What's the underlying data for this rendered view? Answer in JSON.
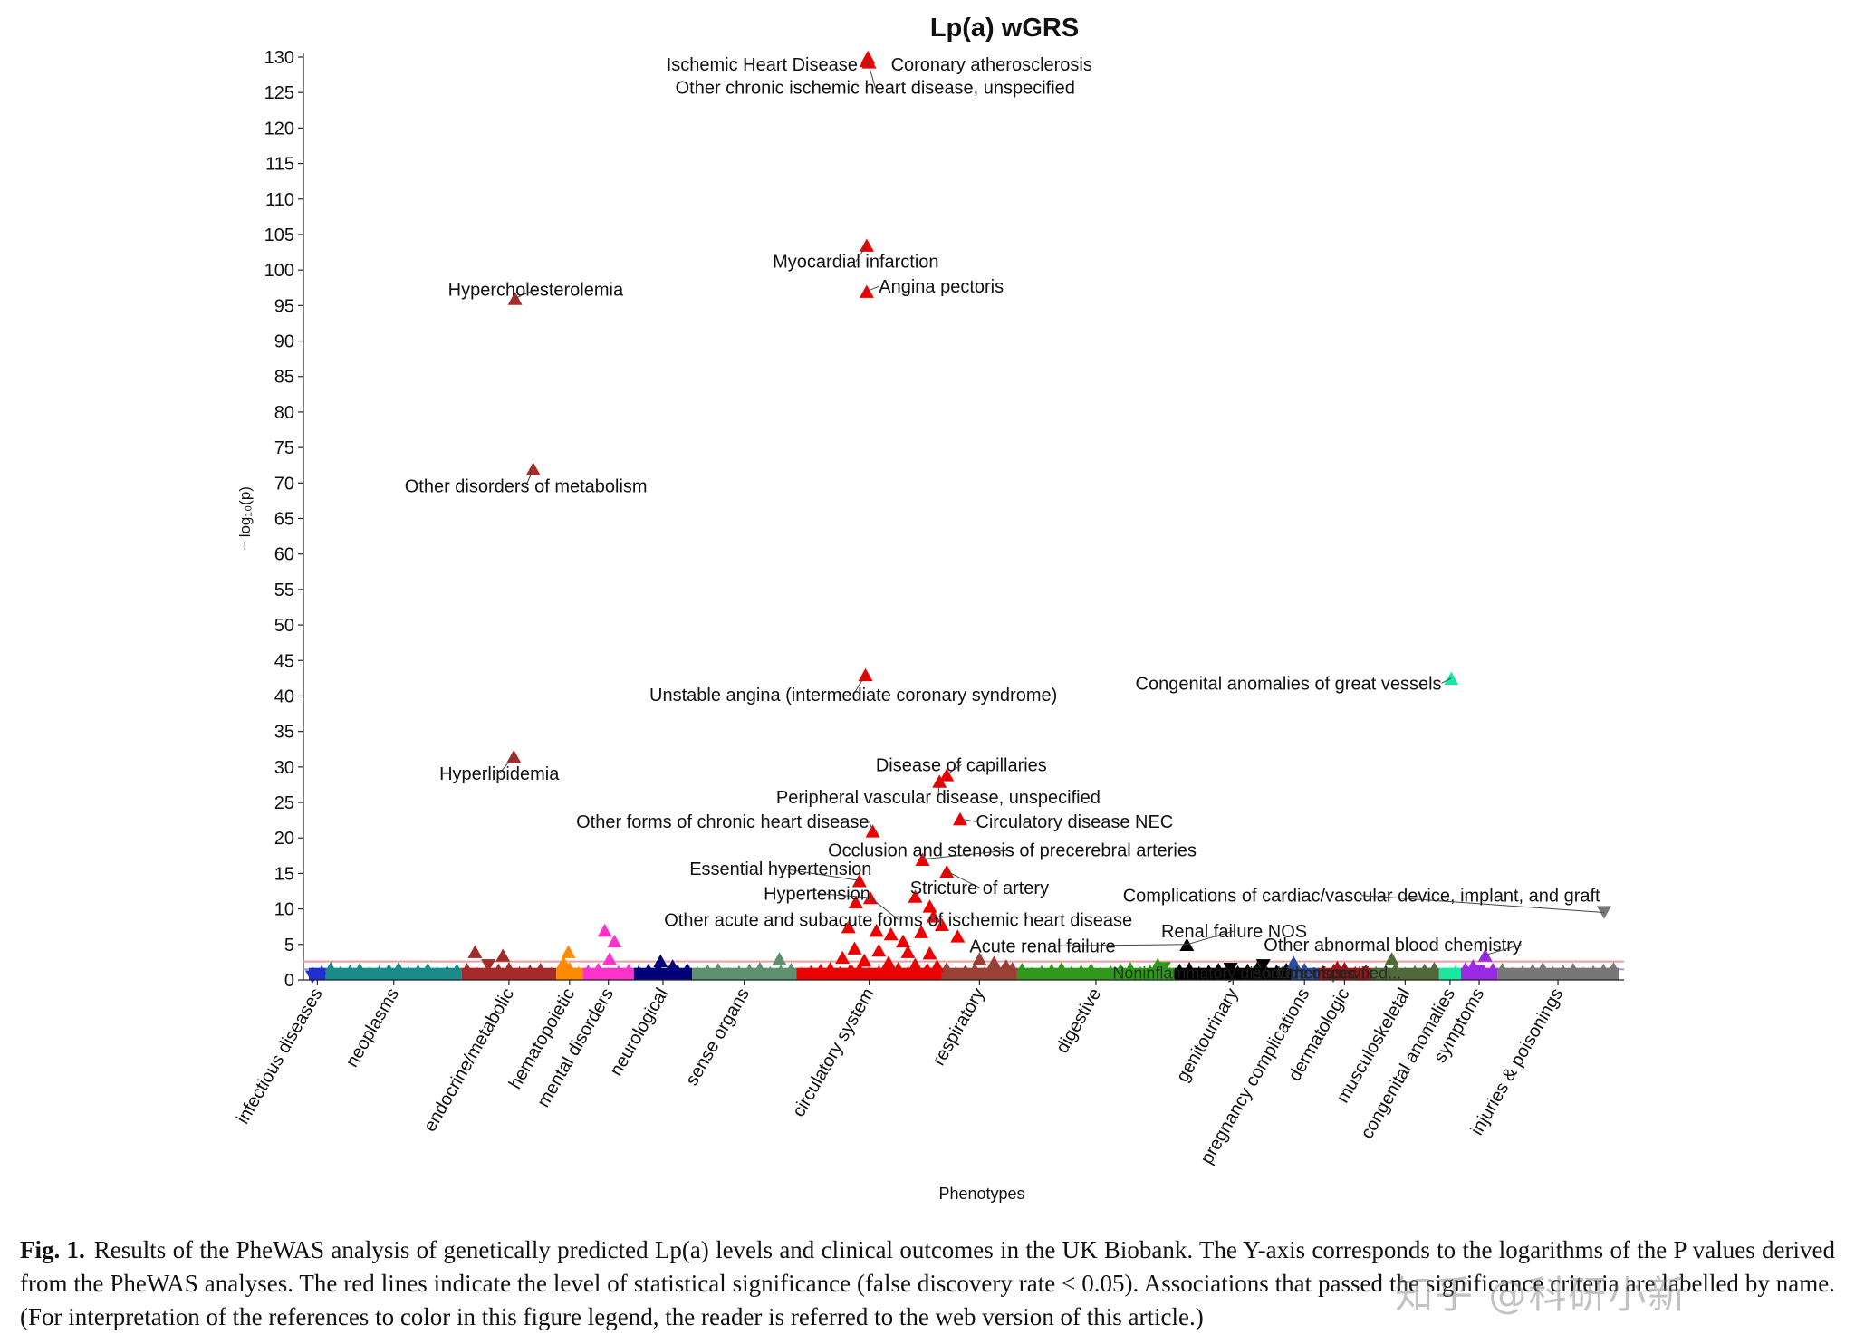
{
  "chart_data": {
    "type": "scatter",
    "title": "Lp(a) wGRS",
    "xlabel": "Phenotypes",
    "ylabel": "− log₁₀(p)",
    "ylim": [
      0,
      130
    ],
    "yticks": [
      0,
      5,
      10,
      15,
      20,
      25,
      30,
      35,
      40,
      45,
      50,
      55,
      60,
      65,
      70,
      75,
      80,
      85,
      90,
      95,
      100,
      105,
      110,
      115,
      120,
      125,
      130
    ],
    "significance_lines": [
      {
        "value": 2.6,
        "color": "#e8a0a0"
      },
      {
        "value": 1.5,
        "color": "#9a9ae0"
      }
    ],
    "categories": [
      {
        "name": "infectious diseases",
        "color": "#1f2fd0",
        "start": 0,
        "end": 14
      },
      {
        "name": "neoplasms",
        "color": "#1a8a8a",
        "start": 14,
        "end": 126
      },
      {
        "name": "endocrine/metabolic",
        "color": "#a52a2a",
        "start": 126,
        "end": 204
      },
      {
        "name": "hematopoietic",
        "color": "#ff8c00",
        "start": 204,
        "end": 226
      },
      {
        "name": "mental disorders",
        "color": "#ff33cc",
        "start": 226,
        "end": 268
      },
      {
        "name": "neurological",
        "color": "#00007a",
        "start": 268,
        "end": 316
      },
      {
        "name": "sense organs",
        "color": "#5f9070",
        "start": 316,
        "end": 402
      },
      {
        "name": "circulatory system",
        "color": "#ee0000",
        "start": 402,
        "end": 522
      },
      {
        "name": "respiratory",
        "color": "#9a4036",
        "start": 522,
        "end": 584
      },
      {
        "name": "digestive",
        "color": "#2f9a1a",
        "start": 584,
        "end": 714
      },
      {
        "name": "genitourinary",
        "color": "#000000",
        "start": 714,
        "end": 810
      },
      {
        "name": "pregnancy complications",
        "color": "#2a4da0",
        "start": 810,
        "end": 832
      },
      {
        "name": "dermatologic",
        "color": "#a01515",
        "start": 832,
        "end": 876
      },
      {
        "name": "musculoskeletal",
        "color": "#4f6b3a",
        "start": 876,
        "end": 932
      },
      {
        "name": "congenital anomalies",
        "color": "#19e8a0",
        "start": 932,
        "end": 950
      },
      {
        "name": "symptoms",
        "color": "#9a2be2",
        "start": 950,
        "end": 980
      },
      {
        "name": "injuries & poisonings",
        "color": "#777777",
        "start": 980,
        "end": 1080
      }
    ],
    "points": [
      {
        "x": 461,
        "y": 130,
        "cat": "circulatory system",
        "dir": "up"
      },
      {
        "x": 460,
        "y": 129.5,
        "cat": "circulatory system",
        "dir": "up"
      },
      {
        "x": 462,
        "y": 129.3,
        "cat": "circulatory system",
        "dir": "up"
      },
      {
        "x": 460,
        "y": 103.5,
        "cat": "circulatory system",
        "dir": "up"
      },
      {
        "x": 460,
        "y": 97,
        "cat": "circulatory system",
        "dir": "up"
      },
      {
        "x": 170,
        "y": 96,
        "cat": "endocrine/metabolic",
        "dir": "up"
      },
      {
        "x": 185,
        "y": 72,
        "cat": "endocrine/metabolic",
        "dir": "up"
      },
      {
        "x": 459,
        "y": 43,
        "cat": "circulatory system",
        "dir": "up"
      },
      {
        "x": 942,
        "y": 42.5,
        "cat": "congenital anomalies",
        "dir": "up"
      },
      {
        "x": 169,
        "y": 31.5,
        "cat": "endocrine/metabolic",
        "dir": "up"
      },
      {
        "x": 526,
        "y": 28.9,
        "cat": "circulatory system",
        "dir": "up"
      },
      {
        "x": 520,
        "y": 28,
        "cat": "circulatory system",
        "dir": "up"
      },
      {
        "x": 537,
        "y": 22.7,
        "cat": "circulatory system",
        "dir": "up"
      },
      {
        "x": 465,
        "y": 21,
        "cat": "circulatory system",
        "dir": "up"
      },
      {
        "x": 506,
        "y": 17,
        "cat": "circulatory system",
        "dir": "up"
      },
      {
        "x": 526,
        "y": 15.3,
        "cat": "circulatory system",
        "dir": "up"
      },
      {
        "x": 454,
        "y": 14,
        "cat": "circulatory system",
        "dir": "up"
      },
      {
        "x": 463,
        "y": 11.6,
        "cat": "circulatory system",
        "dir": "up"
      },
      {
        "x": 451,
        "y": 11,
        "cat": "circulatory system",
        "dir": "up"
      },
      {
        "x": 500,
        "y": 11.8,
        "cat": "circulatory system",
        "dir": "up"
      },
      {
        "x": 512,
        "y": 10.4,
        "cat": "circulatory system",
        "dir": "up"
      },
      {
        "x": 515,
        "y": 9,
        "cat": "circulatory system",
        "dir": "up"
      },
      {
        "x": 522,
        "y": 7.8,
        "cat": "circulatory system",
        "dir": "up"
      },
      {
        "x": 445,
        "y": 7.5,
        "cat": "circulatory system",
        "dir": "up"
      },
      {
        "x": 468,
        "y": 7,
        "cat": "circulatory system",
        "dir": "up"
      },
      {
        "x": 480,
        "y": 6.5,
        "cat": "circulatory system",
        "dir": "up"
      },
      {
        "x": 505,
        "y": 6.8,
        "cat": "circulatory system",
        "dir": "up"
      },
      {
        "x": 535,
        "y": 6.2,
        "cat": "circulatory system",
        "dir": "up"
      },
      {
        "x": 490,
        "y": 5.5,
        "cat": "circulatory system",
        "dir": "up"
      },
      {
        "x": 450,
        "y": 4.5,
        "cat": "circulatory system",
        "dir": "up"
      },
      {
        "x": 470,
        "y": 4.2,
        "cat": "circulatory system",
        "dir": "up"
      },
      {
        "x": 494,
        "y": 4,
        "cat": "circulatory system",
        "dir": "up"
      },
      {
        "x": 512,
        "y": 3.8,
        "cat": "circulatory system",
        "dir": "up"
      },
      {
        "x": 440,
        "y": 3.2,
        "cat": "circulatory system",
        "dir": "up"
      },
      {
        "x": 458,
        "y": 2.8,
        "cat": "circulatory system",
        "dir": "up"
      },
      {
        "x": 478,
        "y": 2.5,
        "cat": "circulatory system",
        "dir": "up"
      },
      {
        "x": 500,
        "y": 2.2,
        "cat": "circulatory system",
        "dir": "up"
      },
      {
        "x": 518,
        "y": 2,
        "cat": "circulatory system",
        "dir": "up"
      },
      {
        "x": 430,
        "y": 1.5,
        "cat": "circulatory system",
        "dir": "up"
      },
      {
        "x": 448,
        "y": 1.2,
        "cat": "circulatory system",
        "dir": "up"
      },
      {
        "x": 487,
        "y": 1.3,
        "cat": "circulatory system",
        "dir": "up"
      },
      {
        "x": 508,
        "y": 1,
        "cat": "circulatory system",
        "dir": "up"
      },
      {
        "x": 1068,
        "y": 9.5,
        "cat": "injuries & poisonings",
        "dir": "down"
      },
      {
        "x": 724,
        "y": 5,
        "cat": "genitourinary",
        "dir": "up"
      },
      {
        "x": 244,
        "y": 7,
        "cat": "mental disorders",
        "dir": "up"
      },
      {
        "x": 252,
        "y": 5.5,
        "cat": "mental disorders",
        "dir": "up"
      },
      {
        "x": 248,
        "y": 3,
        "cat": "mental disorders",
        "dir": "up"
      },
      {
        "x": 137,
        "y": 4,
        "cat": "endocrine/metabolic",
        "dir": "up"
      },
      {
        "x": 160,
        "y": 3.5,
        "cat": "endocrine/metabolic",
        "dir": "up"
      },
      {
        "x": 148,
        "y": 2,
        "cat": "endocrine/metabolic",
        "dir": "down"
      },
      {
        "x": 214,
        "y": 4,
        "cat": "hematopoietic",
        "dir": "up"
      },
      {
        "x": 210,
        "y": 2.5,
        "cat": "hematopoietic",
        "dir": "up"
      },
      {
        "x": 290,
        "y": 2.7,
        "cat": "neurological",
        "dir": "up"
      },
      {
        "x": 300,
        "y": 2,
        "cat": "neurological",
        "dir": "up"
      },
      {
        "x": 388,
        "y": 3,
        "cat": "sense organs",
        "dir": "up"
      },
      {
        "x": 553,
        "y": 3,
        "cat": "respiratory",
        "dir": "up"
      },
      {
        "x": 565,
        "y": 2.5,
        "cat": "respiratory",
        "dir": "up"
      },
      {
        "x": 575,
        "y": 2,
        "cat": "respiratory",
        "dir": "up"
      },
      {
        "x": 700,
        "y": 2.2,
        "cat": "digestive",
        "dir": "up"
      },
      {
        "x": 705,
        "y": 1.6,
        "cat": "digestive",
        "dir": "down"
      },
      {
        "x": 787,
        "y": 2,
        "cat": "genitourinary",
        "dir": "down"
      },
      {
        "x": 760,
        "y": 1.5,
        "cat": "genitourinary",
        "dir": "down"
      },
      {
        "x": 812,
        "y": 2.5,
        "cat": "pregnancy complications",
        "dir": "up"
      },
      {
        "x": 848,
        "y": 1.8,
        "cat": "dermatologic",
        "dir": "up"
      },
      {
        "x": 893,
        "y": 3,
        "cat": "musculoskeletal",
        "dir": "up"
      },
      {
        "x": 970,
        "y": 3.5,
        "cat": "symptoms",
        "dir": "up"
      },
      {
        "x": 960,
        "y": 2,
        "cat": "symptoms",
        "dir": "up"
      },
      {
        "x": 963,
        "y": 1.2,
        "cat": "symptoms",
        "dir": "down"
      },
      {
        "x": 3,
        "y": 0.4,
        "cat": "infectious diseases",
        "dir": "down"
      }
    ],
    "annotations": [
      {
        "text": "Ischemic Heart Disease",
        "x": 460,
        "y": 129.5,
        "tx": 460,
        "ty": 129,
        "anchor": "end",
        "dx": -10
      },
      {
        "text": "Coronary atherosclerosis",
        "x": 462,
        "y": 129.5,
        "tx": 462,
        "ty": 129,
        "anchor": "start",
        "dx": 24
      },
      {
        "text": "Other chronic ischemic heart disease, unspecified",
        "x": 461,
        "y": 129.3,
        "tx": 467,
        "ty": 125.7,
        "anchor": "middle",
        "dx": 0
      },
      {
        "text": "Myocardial infarction",
        "x": 460,
        "y": 103.5,
        "tx": 451,
        "ty": 101.2,
        "anchor": "middle",
        "dx": 0
      },
      {
        "text": "Angina pectoris",
        "x": 460,
        "y": 97,
        "tx": 470,
        "ty": 97.7,
        "anchor": "start",
        "dx": 0
      },
      {
        "text": "Hypercholesterolemia",
        "x": 170,
        "y": 96,
        "tx": 187,
        "ty": 97.3,
        "anchor": "middle",
        "dx": 0
      },
      {
        "text": "Other disorders of metabolism",
        "x": 185,
        "y": 72,
        "tx": 179,
        "ty": 69.6,
        "anchor": "middle",
        "dx": 0
      },
      {
        "text": "Unstable angina (intermediate coronary syndrome)",
        "x": 459,
        "y": 43,
        "tx": 449,
        "ty": 40.2,
        "anchor": "middle",
        "dx": 0
      },
      {
        "text": "Congenital anomalies of great vessels",
        "x": 942,
        "y": 42.5,
        "tx": 934,
        "ty": 41.8,
        "anchor": "end",
        "dx": 0
      },
      {
        "text": "Hyperlipidemia",
        "x": 169,
        "y": 31.5,
        "tx": 157,
        "ty": 29.1,
        "anchor": "middle",
        "dx": 0
      },
      {
        "text": "Disease of capillaries",
        "x": 526,
        "y": 28.9,
        "tx": 538,
        "ty": 30.3,
        "anchor": "middle",
        "dx": 0
      },
      {
        "text": "Peripheral vascular disease, unspecified",
        "x": 520,
        "y": 28,
        "tx": 519,
        "ty": 25.8,
        "anchor": "middle",
        "dx": 0
      },
      {
        "text": "Circulatory disease NEC",
        "x": 537,
        "y": 22.7,
        "tx": 550,
        "ty": 22.3,
        "anchor": "start",
        "dx": 0
      },
      {
        "text": "Other forms of chronic heart disease",
        "x": 465,
        "y": 21,
        "tx": 462,
        "ty": 22.3,
        "anchor": "end",
        "dx": 0
      },
      {
        "text": "Occlusion and stenosis of precerebral arteries",
        "x": 506,
        "y": 17,
        "tx": 580,
        "ty": 18.3,
        "anchor": "middle",
        "dx": 0
      },
      {
        "text": "Essential hypertension",
        "x": 454,
        "y": 14,
        "tx": 389,
        "ty": 15.7,
        "anchor": "middle",
        "dx": 0
      },
      {
        "text": "Stricture of artery",
        "x": 526,
        "y": 15.3,
        "tx": 553,
        "ty": 13,
        "anchor": "middle",
        "dx": 0
      },
      {
        "text": "Hypertension",
        "x": 463,
        "y": 11.6,
        "tx": 419,
        "ty": 12.2,
        "anchor": "middle",
        "dx": 0
      },
      {
        "text": "Other acute and subacute forms of ischemic heart disease",
        "x": 463,
        "y": 11.6,
        "tx": 486,
        "ty": 8.5,
        "anchor": "middle",
        "dx": 0
      },
      {
        "text": "Complications of cardiac/vascular device, implant, and graft",
        "x": 1068,
        "y": 9.5,
        "tx": 868,
        "ty": 11.9,
        "anchor": "middle",
        "dx": 0
      },
      {
        "text": "Renal failure NOS",
        "x": 724,
        "y": 5,
        "tx": 763,
        "ty": 6.9,
        "anchor": "middle",
        "dx": 0
      },
      {
        "text": "Acute renal failure",
        "x": 724,
        "y": 5,
        "tx": 605,
        "ty": 4.8,
        "anchor": "middle",
        "dx": 0
      },
      {
        "text": "Other abnormal blood chemistry",
        "x": 970,
        "y": 3.5,
        "tx": 1000,
        "ty": 5,
        "anchor": "end",
        "dx": 0
      }
    ],
    "overlap_labels": [
      {
        "text": "Noninflammatory disorders of cervix",
        "tx": 770,
        "ty": 1.1
      },
      {
        "text": "Endometriosis",
        "tx": 820,
        "ty": 1.1
      },
      {
        "text": "Other specified...",
        "tx": 850,
        "ty": 1.1
      }
    ]
  },
  "caption": {
    "lead": "Fig. 1.",
    "text": "Results of the PheWAS analysis of genetically predicted Lp(a) levels and clinical outcomes in the UK Biobank. The Y-axis corresponds to the logarithms of the P values derived from the PheWAS analyses. The red lines indicate the level of statistical significance (false discovery rate < 0.05). Associations that passed the significance criteria are labelled by name. (For interpretation of the references to color in this figure legend, the reader is referred to the web version of this article.)"
  },
  "watermark": "知乎 @科研小新"
}
